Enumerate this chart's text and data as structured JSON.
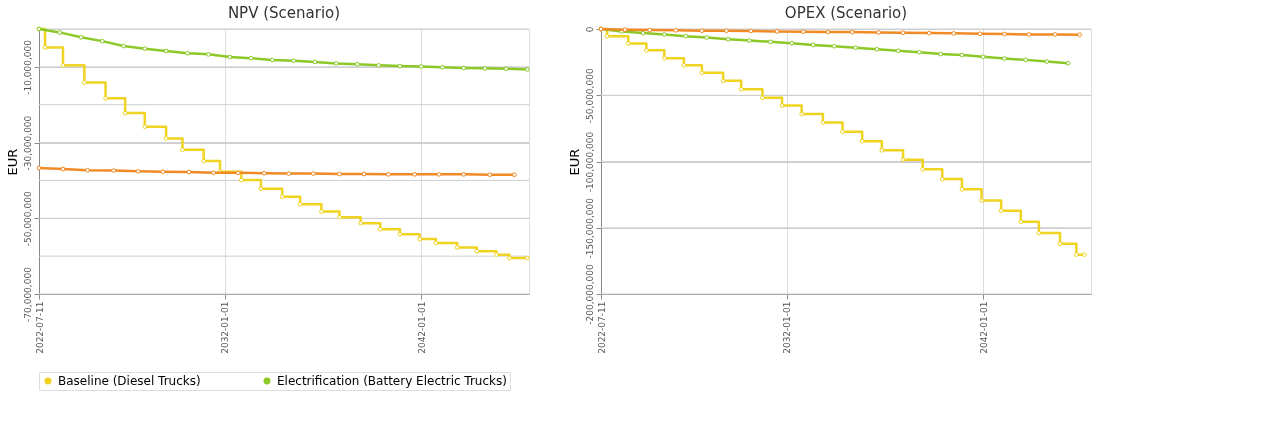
{
  "chart_data": [
    {
      "type": "line",
      "title": "NPV (Scenario)",
      "ylabel": "EUR",
      "xlim": [
        "2022-07-11",
        "2047-06-30"
      ],
      "xticks": [
        "2022-07-11",
        "2032-01-01",
        "2042-01-01"
      ],
      "ylim": [
        -70000000,
        0
      ],
      "yticks": [
        {
          "value": 0,
          "label": null
        },
        {
          "value": -10000000,
          "label": "-10,000,000"
        },
        {
          "value": -20000000,
          "label": null
        },
        {
          "value": -30000000,
          "label": "-30,000,000"
        },
        {
          "value": -40000000,
          "label": null
        },
        {
          "value": -50000000,
          "label": "-50,000,000"
        },
        {
          "value": -60000000,
          "label": null
        },
        {
          "value": -70000000,
          "label": "-70,000,000"
        }
      ],
      "grid": true,
      "legend": "bottom",
      "marker": "circle",
      "line_style": "solid",
      "series": [
        {
          "name": "Baseline (Diesel Trucks)",
          "type": "step",
          "color": "#f0d320",
          "x": [
            "2022-07-11",
            "2022-11",
            "2023-10",
            "2024-11",
            "2025-12",
            "2026-12",
            "2027-12",
            "2029-01",
            "2029-11",
            "2030-12",
            "2031-10",
            "2032-11",
            "2033-11",
            "2034-12",
            "2035-11",
            "2036-12",
            "2037-11",
            "2038-12",
            "2039-12",
            "2040-12",
            "2041-12",
            "2042-10",
            "2043-11",
            "2044-11",
            "2045-11",
            "2046-07",
            "2047-06"
          ],
          "values": [
            0,
            -4900000,
            -9600000,
            -14100000,
            -18300000,
            -22200000,
            -25800000,
            -28900000,
            -31900000,
            -34900000,
            -37700000,
            -39900000,
            -42200000,
            -44300000,
            -46300000,
            -48200000,
            -49700000,
            -51300000,
            -52900000,
            -54200000,
            -55500000,
            -56500000,
            -57700000,
            -58700000,
            -59600000,
            -60500000,
            -60500000
          ]
        },
        {
          "name": "Electrification (Battery Electric Trucks)",
          "type": "line",
          "color": "#8cc828",
          "x": [
            "2022-07-11",
            "2023-08",
            "2024-09",
            "2025-10",
            "2026-11",
            "2027-12",
            "2029-01",
            "2030-02",
            "2031-03",
            "2032-04",
            "2033-05",
            "2034-06",
            "2035-07",
            "2036-08",
            "2037-09",
            "2038-10",
            "2039-11",
            "2040-12",
            "2042-01",
            "2043-02",
            "2044-03",
            "2045-04",
            "2046-05",
            "2047-06"
          ],
          "values": [
            0,
            -900000,
            -2200000,
            -3200000,
            -4500000,
            -5200000,
            -5800000,
            -6400000,
            -6700000,
            -7400000,
            -7700000,
            -8200000,
            -8400000,
            -8700000,
            -9100000,
            -9300000,
            -9600000,
            -9800000,
            -9900000,
            -10100000,
            -10300000,
            -10400000,
            -10500000,
            -10700000
          ]
        },
        {
          "type": "line",
          "color": "#f08a24",
          "x": [
            "2022-07-11",
            "2023-10",
            "2025-01",
            "2026-05",
            "2027-08",
            "2028-11",
            "2030-03",
            "2031-06",
            "2032-09",
            "2034-01",
            "2035-04",
            "2036-07",
            "2037-11",
            "2039-02",
            "2040-05",
            "2041-09",
            "2042-12",
            "2044-03",
            "2045-07",
            "2046-10"
          ],
          "values": [
            -36700000,
            -37000000,
            -37300000,
            -37400000,
            -37600000,
            -37700000,
            -37800000,
            -38000000,
            -38000000,
            -38100000,
            -38200000,
            -38200000,
            -38300000,
            -38300000,
            -38400000,
            -38400000,
            -38400000,
            -38400000,
            -38500000,
            -38500000
          ]
        }
      ]
    },
    {
      "type": "line",
      "title": "OPEX (Scenario)",
      "ylabel": "EUR",
      "xlim": [
        "2022-07-11",
        "2047-06-30"
      ],
      "xticks": [
        "2022-07-11",
        "2032-01-01",
        "2042-01-01"
      ],
      "ylim": [
        -200000000,
        0
      ],
      "yticks": [
        0,
        {
          "value": -50000000,
          "label": "-50,000,000"
        },
        {
          "value": -100000000,
          "label": "-100,000,000"
        },
        {
          "value": -150000000,
          "label": "-150,000,000"
        },
        {
          "value": -200000000,
          "label": "-200,000,000"
        }
      ],
      "grid": true,
      "legend": "bottom",
      "marker": "circle",
      "line_style": "solid",
      "series": [
        {
          "name": "Baseline (Diesel Trucks)",
          "type": "step",
          "color": "#f0d320",
          "x": [
            "2022-07-11",
            "2022-11",
            "2023-12",
            "2024-11",
            "2025-10",
            "2026-10",
            "2027-09",
            "2028-10",
            "2029-09",
            "2030-10",
            "2031-10",
            "2032-10",
            "2033-11",
            "2034-11",
            "2035-11",
            "2036-11",
            "2037-12",
            "2038-12",
            "2039-12",
            "2040-12",
            "2041-12",
            "2042-12",
            "2043-12",
            "2044-11",
            "2045-12",
            "2046-10",
            "2047-03"
          ],
          "values": [
            0,
            -5400000,
            -11000000,
            -16100000,
            -22000000,
            -27400000,
            -33000000,
            -39100000,
            -45500000,
            -51900000,
            -57800000,
            -64200000,
            -70600000,
            -77500000,
            -84700000,
            -91600000,
            -98700000,
            -105900000,
            -113300000,
            -121000000,
            -129400000,
            -137100000,
            -145500000,
            -154000000,
            -162100000,
            -170300000,
            -170300000
          ]
        },
        {
          "name": "Electrification (Battery Electric Trucks)",
          "type": "line",
          "color": "#8cc828",
          "x": [
            "2022-07-11",
            "2023-08",
            "2024-09",
            "2025-10",
            "2026-11",
            "2027-12",
            "2029-01",
            "2030-02",
            "2031-03",
            "2032-04",
            "2033-05",
            "2034-06",
            "2035-07",
            "2036-08",
            "2037-09",
            "2038-10",
            "2039-11",
            "2040-12",
            "2042-01",
            "2043-02",
            "2044-03",
            "2045-04",
            "2046-05"
          ],
          "values": [
            0,
            -1800000,
            -3100000,
            -4100000,
            -5400000,
            -6400000,
            -7700000,
            -8700000,
            -9700000,
            -10700000,
            -12000000,
            -13000000,
            -14100000,
            -15300000,
            -16400000,
            -17600000,
            -18900000,
            -19700000,
            -21000000,
            -22300000,
            -23300000,
            -24600000,
            -25800000
          ]
        },
        {
          "type": "line",
          "color": "#f08a24",
          "x": [
            "2022-07-11",
            "2023-10",
            "2025-01",
            "2026-05",
            "2027-09",
            "2028-12",
            "2030-03",
            "2031-07",
            "2032-11",
            "2034-02",
            "2035-05",
            "2036-09",
            "2037-12",
            "2039-04",
            "2040-07",
            "2041-11",
            "2043-02",
            "2044-05",
            "2045-09",
            "2046-12"
          ],
          "values": [
            0,
            -500000,
            -800000,
            -1000000,
            -1300000,
            -1300000,
            -1500000,
            -1800000,
            -2000000,
            -2300000,
            -2300000,
            -2600000,
            -2800000,
            -3100000,
            -3300000,
            -3600000,
            -3800000,
            -4100000,
            -4100000,
            -4300000
          ]
        }
      ]
    }
  ]
}
